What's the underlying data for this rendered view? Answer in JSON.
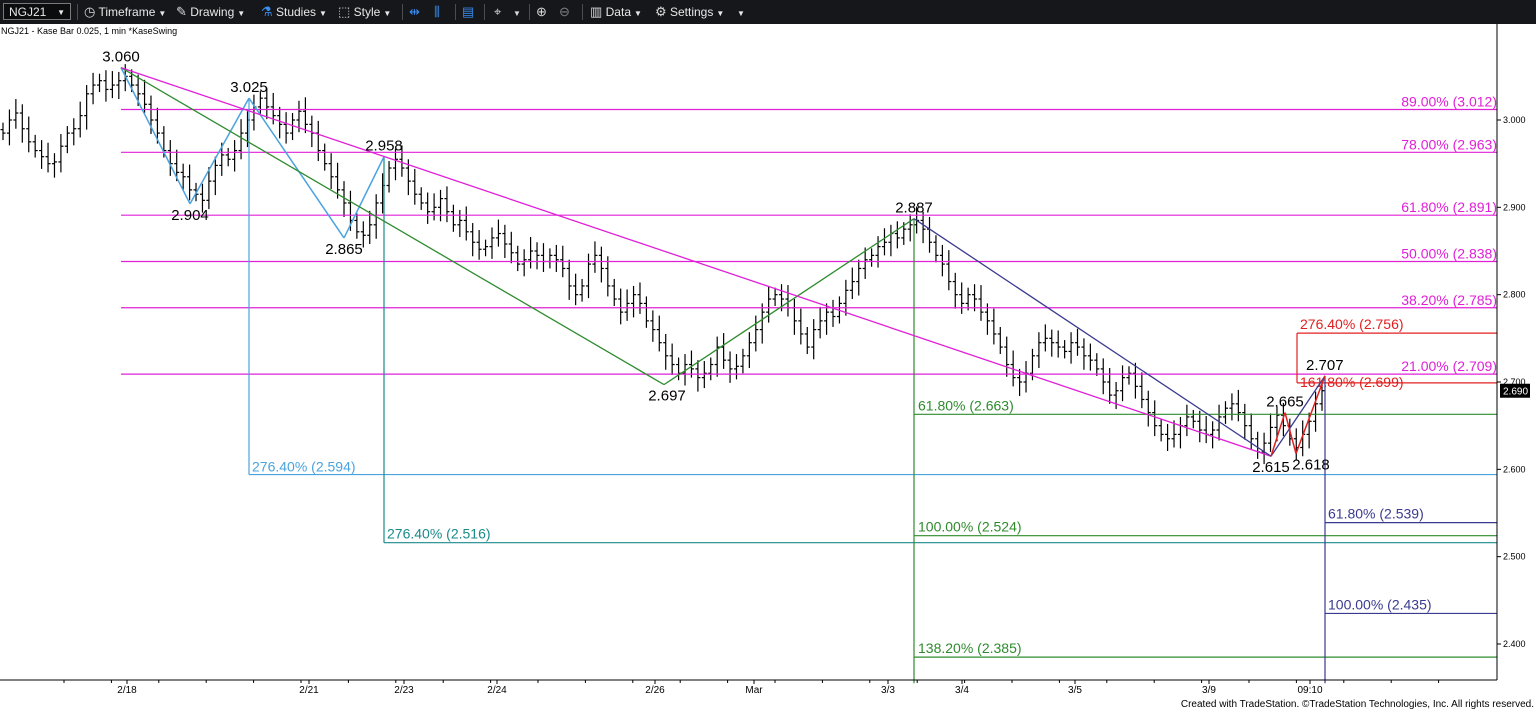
{
  "toolbar": {
    "symbol": "NGJ21",
    "timeframe": "Timeframe",
    "drawing": "Drawing",
    "studies": "Studies",
    "style": "Style",
    "data": "Data",
    "settings": "Settings"
  },
  "chart_title": "NGJ21 - Kase Bar 0.025, 1 min  *KaseSwing",
  "watermark": "Created with TradeStation. ©TradeStation Technologies, Inc. All rights reserved.",
  "colors": {
    "bars": "#000000",
    "magenta": "#e020d8",
    "green": "#2e8b2e",
    "light_blue": "#4aa3df",
    "teal": "#1a8a8a",
    "navy": "#3a3a90",
    "red": "#e02020",
    "toolbar_bg": "#15171b",
    "price_marker_bg": "#000000"
  },
  "chart_data": {
    "type": "bar",
    "instrument": "NGJ21",
    "price_axis": {
      "ylim": [
        2.355,
        3.15
      ],
      "ticks": [
        "3.000",
        "2.900",
        "2.800",
        "2.700",
        "2.600",
        "2.500",
        "2.400"
      ]
    },
    "x_ticks": [
      "2/18",
      "2/21",
      "2/23",
      "2/24",
      "2/26",
      "Mar",
      "3/3",
      "3/4",
      "3/5",
      "3/9",
      "09:10"
    ],
    "last_price": "2.690",
    "swing_points": [
      {
        "label": "3.060",
        "value": 3.06
      },
      {
        "label": "2.904",
        "value": 2.904
      },
      {
        "label": "3.025",
        "value": 3.025
      },
      {
        "label": "2.865",
        "value": 2.865
      },
      {
        "label": "2.958",
        "value": 2.958
      },
      {
        "label": "2.697",
        "value": 2.697
      },
      {
        "label": "2.887",
        "value": 2.887
      },
      {
        "label": "2.615",
        "value": 2.615
      },
      {
        "label": "2.665",
        "value": 2.665
      },
      {
        "label": "2.618",
        "value": 2.618
      },
      {
        "label": "2.707",
        "value": 2.707
      }
    ],
    "retracement_levels": [
      {
        "label": "89.00% (3.012)",
        "value": 3.012,
        "color": "magenta"
      },
      {
        "label": "78.00% (2.963)",
        "value": 2.963,
        "color": "magenta"
      },
      {
        "label": "61.80% (2.891)",
        "value": 2.891,
        "color": "magenta"
      },
      {
        "label": "50.00% (2.838)",
        "value": 2.838,
        "color": "magenta"
      },
      {
        "label": "38.20% (2.785)",
        "value": 2.785,
        "color": "magenta"
      },
      {
        "label": "21.00% (2.709)",
        "value": 2.709,
        "color": "magenta"
      }
    ],
    "extension_levels": [
      {
        "label": "276.40% (2.594)",
        "value": 2.594,
        "color": "light_blue"
      },
      {
        "label": "276.40% (2.516)",
        "value": 2.516,
        "color": "teal"
      },
      {
        "label": "61.80% (2.663)",
        "value": 2.663,
        "color": "green"
      },
      {
        "label": "100.00% (2.524)",
        "value": 2.524,
        "color": "green"
      },
      {
        "label": "138.20% (2.385)",
        "value": 2.385,
        "color": "green"
      },
      {
        "label": "276.40% (2.756)",
        "value": 2.756,
        "color": "red"
      },
      {
        "label": "161.80% (2.699)",
        "value": 2.699,
        "color": "red"
      },
      {
        "label": "61.80% (2.539)",
        "value": 2.539,
        "color": "navy"
      },
      {
        "label": "100.00% (2.435)",
        "value": 2.435,
        "color": "navy"
      }
    ],
    "bars_close": [
      2.985,
      3.0,
      3.008,
      2.99,
      2.975,
      2.965,
      2.958,
      2.95,
      2.952,
      2.97,
      2.985,
      2.99,
      3.005,
      3.03,
      3.04,
      3.045,
      3.035,
      3.04,
      3.045,
      3.05,
      3.04,
      3.03,
      3.018,
      3.0,
      2.985,
      2.965,
      2.95,
      2.94,
      2.935,
      2.92,
      2.915,
      2.908,
      2.93,
      2.948,
      2.96,
      2.955,
      2.965,
      2.985,
      3.0,
      3.015,
      3.025,
      3.015,
      3.005,
      2.995,
      2.985,
      3.0,
      3.01,
      2.995,
      2.985,
      2.965,
      2.95,
      2.935,
      2.92,
      2.905,
      2.885,
      2.872,
      2.868,
      2.88,
      2.905,
      2.925,
      2.945,
      2.955,
      2.945,
      2.93,
      2.915,
      2.905,
      2.895,
      2.9,
      2.91,
      2.895,
      2.88,
      2.885,
      2.872,
      2.86,
      2.852,
      2.855,
      2.865,
      2.87,
      2.858,
      2.848,
      2.835,
      2.84,
      2.85,
      2.845,
      2.838,
      2.845,
      2.84,
      2.83,
      2.81,
      2.8,
      2.81,
      2.835,
      2.845,
      2.83,
      2.81,
      2.795,
      2.78,
      2.79,
      2.8,
      2.79,
      2.77,
      2.76,
      2.745,
      2.73,
      2.72,
      2.71,
      2.72,
      2.715,
      2.705,
      2.71,
      2.72,
      2.74,
      2.725,
      2.715,
      2.718,
      2.73,
      2.745,
      2.76,
      2.78,
      2.795,
      2.8,
      2.795,
      2.785,
      2.77,
      2.755,
      2.74,
      2.76,
      2.77,
      2.78,
      2.775,
      2.79,
      2.805,
      2.815,
      2.83,
      2.84,
      2.845,
      2.855,
      2.86,
      2.87,
      2.865,
      2.875,
      2.88,
      2.885,
      2.875,
      2.86,
      2.845,
      2.835,
      2.815,
      2.8,
      2.79,
      2.8,
      2.795,
      2.78,
      2.77,
      2.755,
      2.74,
      2.72,
      2.705,
      2.7,
      2.71,
      2.73,
      2.745,
      2.75,
      2.745,
      2.74,
      2.735,
      2.745,
      2.74,
      2.73,
      2.725,
      2.715,
      2.7,
      2.685,
      2.69,
      2.705,
      2.71,
      2.695,
      2.68,
      2.665,
      2.65,
      2.64,
      2.635,
      2.64,
      2.65,
      2.66,
      2.655,
      2.645,
      2.64,
      2.645,
      2.66,
      2.67,
      2.675,
      2.665,
      2.65,
      2.635,
      2.62,
      2.63,
      2.648,
      2.662,
      2.65,
      2.635,
      2.625,
      2.64,
      2.655,
      2.675,
      2.69
    ]
  }
}
